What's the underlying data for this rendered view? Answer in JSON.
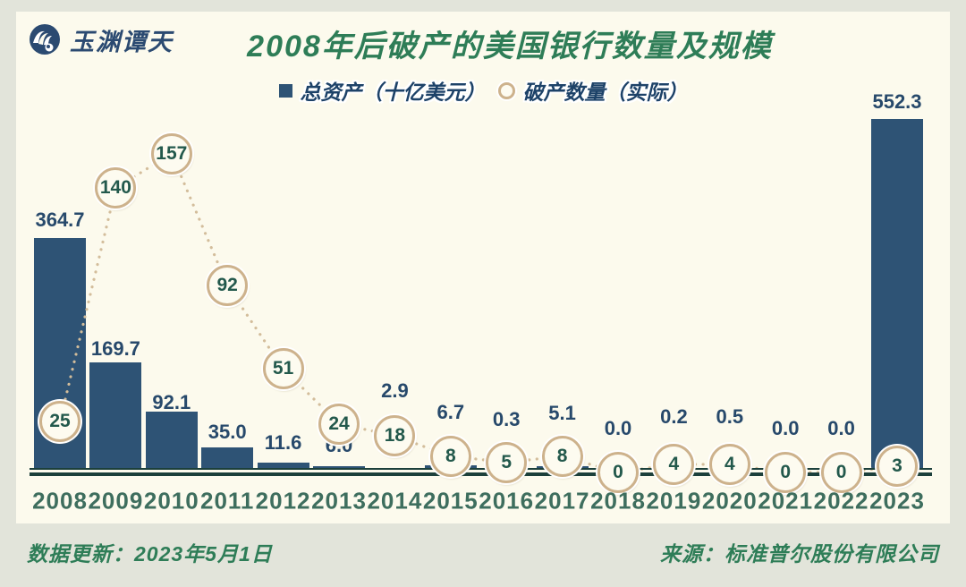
{
  "header": {
    "logo_text": "玉渊谭天",
    "title": "2008年后破产的美国银行数量及规模"
  },
  "legend": {
    "bar_label": "总资产（十亿美元）",
    "dot_label": "破产数量（实际）"
  },
  "footer": {
    "update_note": "数据更新：2023年5月1日",
    "source_note": "来源：标准普尔股份有限公司"
  },
  "colors": {
    "page_bg": "#e2e4da",
    "card_bg": "#fcfaed",
    "bar": "#2e5375",
    "bar_value_text": "#27496b",
    "axis": "#1c403b",
    "year_text": "#3e6e5e",
    "title_green": "#2e7d57",
    "legend_text_navy": "#1d4268",
    "circle_border": "#cdb28c",
    "circle_fill": "#fdfbf0",
    "circle_text": "#23594c",
    "dotted_line": "#d3bd9b",
    "logo_navy": "#2b4a71"
  },
  "chart_data": {
    "type": "bar",
    "title": "2008年后破产的美国银行数量及规模",
    "categories": [
      "2008",
      "2009",
      "2010",
      "2011",
      "2012",
      "2013",
      "2014",
      "2015",
      "2016",
      "2017",
      "2018",
      "2019",
      "2020",
      "2021",
      "2022",
      "2023"
    ],
    "series": [
      {
        "name": "总资产（十亿美元）",
        "type": "bar",
        "values": [
          364.7,
          169.7,
          92.1,
          35.0,
          11.6,
          6.0,
          2.9,
          6.7,
          0.3,
          5.1,
          0.0,
          0.2,
          0.5,
          0.0,
          0.0,
          552.3
        ],
        "value_label_decimals": 1
      },
      {
        "name": "破产数量（实际）",
        "type": "line-dotted-circles",
        "values": [
          25,
          140,
          157,
          92,
          51,
          24,
          18,
          8,
          5,
          8,
          0,
          4,
          4,
          0,
          0,
          3
        ]
      }
    ],
    "xlabel": "",
    "ylabel": "",
    "ylim_assets": [
      0,
      560
    ],
    "ylim_count": [
      0,
      160
    ],
    "grid": false,
    "legend_position": "top-center"
  }
}
